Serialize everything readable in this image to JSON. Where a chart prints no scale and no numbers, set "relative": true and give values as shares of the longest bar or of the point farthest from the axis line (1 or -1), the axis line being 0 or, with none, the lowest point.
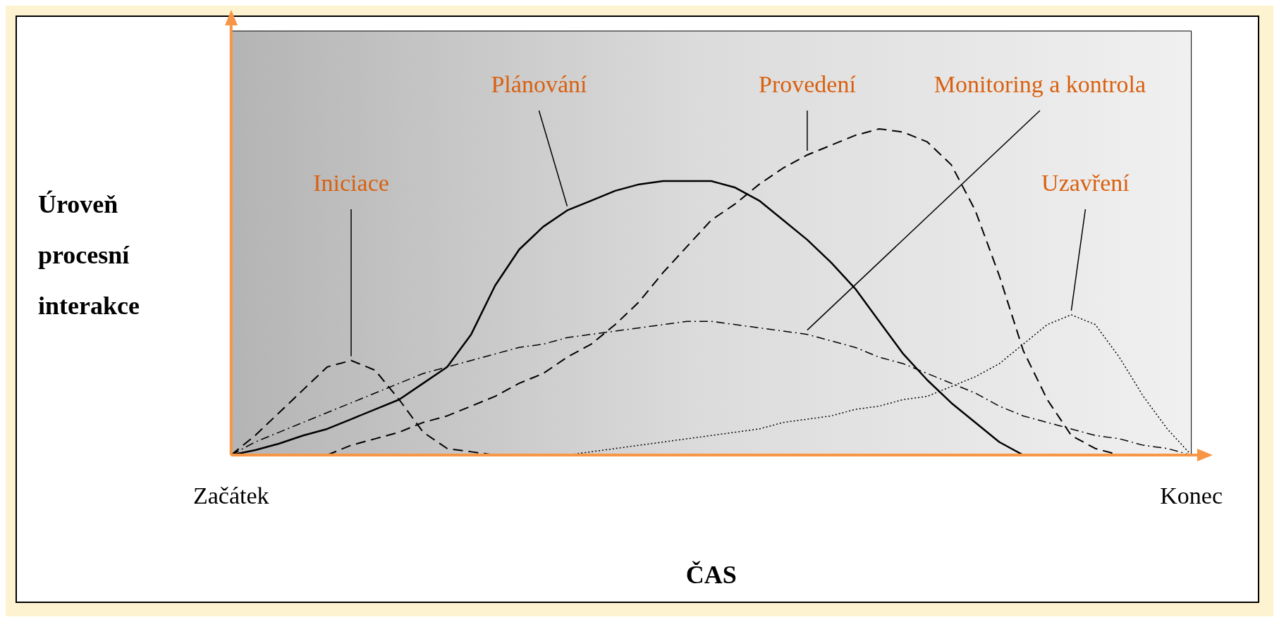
{
  "chart_data": {
    "type": "line",
    "relative": true,
    "xlabel": "ČAS",
    "ylabel": "Úroveň procesní interakce",
    "legend": false,
    "marker": "none",
    "categories": [
      "Začátek",
      null,
      null,
      null,
      null,
      null,
      null,
      null,
      null,
      null,
      null,
      null,
      null,
      null,
      null,
      null,
      null,
      null,
      null,
      null,
      null,
      null,
      null,
      null,
      null,
      null,
      null,
      null,
      null,
      null,
      null,
      null,
      null,
      null,
      null,
      null,
      null,
      null,
      null,
      null,
      "Konec"
    ],
    "series": [
      {
        "name": "Iniciace",
        "color": "#000000",
        "line_style": "dashed",
        "values": [
          0,
          0.06,
          0.13,
          0.2,
          0.27,
          0.29,
          0.26,
          0.17,
          0.07,
          0.02,
          0.01,
          0,
          null,
          null,
          null,
          null,
          null,
          null,
          null,
          null,
          null,
          null,
          null,
          null,
          null,
          null,
          null,
          null,
          null,
          null,
          null,
          null,
          null,
          null,
          null,
          null,
          null,
          null,
          null,
          null,
          null
        ]
      },
      {
        "name": "Plánování",
        "color": "#000000",
        "line_style": "solid",
        "values": [
          0,
          0.015,
          0.035,
          0.06,
          0.08,
          0.11,
          0.14,
          0.17,
          0.22,
          0.27,
          0.37,
          0.52,
          0.63,
          0.7,
          0.75,
          0.78,
          0.81,
          0.83,
          0.84,
          0.84,
          0.84,
          0.82,
          0.78,
          0.72,
          0.66,
          0.59,
          0.51,
          0.41,
          0.31,
          0.23,
          0.16,
          0.1,
          0.04,
          0,
          null,
          null,
          null,
          null,
          null,
          null,
          null
        ]
      },
      {
        "name": "Provedení",
        "color": "#000000",
        "line_style": "dashed",
        "values": [
          null,
          null,
          null,
          null,
          0,
          0.03,
          0.05,
          0.07,
          0.1,
          0.12,
          0.15,
          0.18,
          0.22,
          0.25,
          0.3,
          0.34,
          0.4,
          0.47,
          0.56,
          0.64,
          0.72,
          0.77,
          0.83,
          0.88,
          0.92,
          0.95,
          0.98,
          1,
          0.99,
          0.96,
          0.89,
          0.75,
          0.55,
          0.32,
          0.17,
          0.06,
          0.02,
          0,
          null,
          null,
          null
        ]
      },
      {
        "name": "Monitoring a kontrola",
        "color": "#000000",
        "line_style": "dashdot",
        "values": [
          0,
          0.04,
          0.07,
          0.1,
          0.13,
          0.16,
          0.19,
          0.22,
          0.25,
          0.27,
          0.29,
          0.31,
          0.33,
          0.34,
          0.36,
          0.37,
          0.38,
          0.39,
          0.4,
          0.41,
          0.41,
          0.4,
          0.39,
          0.38,
          0.37,
          0.35,
          0.33,
          0.3,
          0.28,
          0.25,
          0.22,
          0.19,
          0.15,
          0.12,
          0.1,
          0.08,
          0.06,
          0.05,
          0.03,
          0.02,
          0
        ]
      },
      {
        "name": "Uzavření",
        "color": "#000000",
        "line_style": "dotted",
        "values": [
          null,
          null,
          null,
          null,
          null,
          null,
          null,
          null,
          null,
          null,
          null,
          null,
          null,
          null,
          0,
          0.01,
          0.02,
          0.03,
          0.04,
          0.05,
          0.06,
          0.07,
          0.08,
          0.1,
          0.11,
          0.12,
          0.14,
          0.15,
          0.17,
          0.18,
          0.21,
          0.24,
          0.28,
          0.34,
          0.4,
          0.43,
          0.4,
          0.3,
          0.18,
          0.08,
          0
        ]
      }
    ]
  }
}
